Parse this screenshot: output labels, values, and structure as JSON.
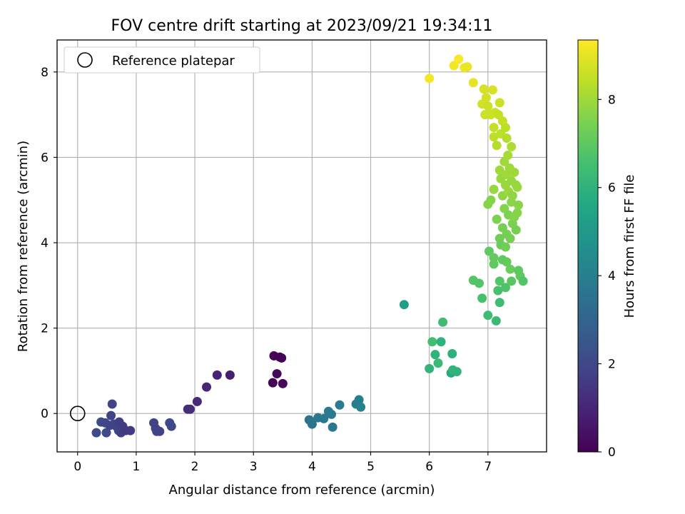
{
  "chart_data": {
    "type": "scatter",
    "title": "FOV centre drift starting at 2023/09/21 19:34:11",
    "xlabel": "Angular distance from reference (arcmin)",
    "ylabel": "Rotation from reference (arcmin)",
    "xlim": [
      -0.35,
      8.0
    ],
    "ylim": [
      -0.9,
      8.75
    ],
    "xticks": [
      "0",
      "1",
      "2",
      "3",
      "4",
      "5",
      "6",
      "7"
    ],
    "yticks": [
      "0",
      "2",
      "4",
      "6",
      "8"
    ],
    "grid": true,
    "legend": {
      "position": "top-left",
      "entries": [
        {
          "label": "Reference platepar",
          "marker": "open-circle"
        }
      ]
    },
    "reference_point": {
      "x": 0,
      "y": 0
    },
    "colorbar": {
      "label": "Hours from first FF file",
      "range": [
        0,
        9.35
      ],
      "ticks": [
        "0",
        "2",
        "4",
        "6",
        "8"
      ],
      "colormap": "viridis"
    },
    "points": [
      {
        "x": 0.32,
        "y": -0.45,
        "h": 2.1
      },
      {
        "x": 0.4,
        "y": -0.2,
        "h": 2.1
      },
      {
        "x": 0.47,
        "y": -0.22,
        "h": 2.0
      },
      {
        "x": 0.49,
        "y": -0.45,
        "h": 2.0
      },
      {
        "x": 0.55,
        "y": -0.28,
        "h": 1.9
      },
      {
        "x": 0.57,
        "y": -0.05,
        "h": 1.9
      },
      {
        "x": 0.59,
        "y": 0.22,
        "h": 1.9
      },
      {
        "x": 0.62,
        "y": -0.25,
        "h": 1.8
      },
      {
        "x": 0.66,
        "y": -0.3,
        "h": 1.8
      },
      {
        "x": 0.7,
        "y": -0.4,
        "h": 1.8
      },
      {
        "x": 0.71,
        "y": -0.2,
        "h": 1.7
      },
      {
        "x": 0.74,
        "y": -0.45,
        "h": 1.7
      },
      {
        "x": 0.77,
        "y": -0.3,
        "h": 1.7
      },
      {
        "x": 0.82,
        "y": -0.4,
        "h": 1.6
      },
      {
        "x": 0.9,
        "y": -0.4,
        "h": 1.6
      },
      {
        "x": 1.3,
        "y": -0.22,
        "h": 1.8
      },
      {
        "x": 1.33,
        "y": -0.35,
        "h": 1.8
      },
      {
        "x": 1.35,
        "y": -0.42,
        "h": 1.9
      },
      {
        "x": 1.4,
        "y": -0.42,
        "h": 1.9
      },
      {
        "x": 1.57,
        "y": -0.22,
        "h": 2.0
      },
      {
        "x": 1.6,
        "y": -0.3,
        "h": 2.0
      },
      {
        "x": 1.88,
        "y": 0.1,
        "h": 1.2
      },
      {
        "x": 1.92,
        "y": 0.1,
        "h": 1.2
      },
      {
        "x": 2.04,
        "y": 0.28,
        "h": 1.1
      },
      {
        "x": 2.2,
        "y": 0.62,
        "h": 1.0
      },
      {
        "x": 2.38,
        "y": 0.9,
        "h": 0.9
      },
      {
        "x": 2.6,
        "y": 0.9,
        "h": 0.8
      },
      {
        "x": 3.33,
        "y": 0.72,
        "h": 0.1
      },
      {
        "x": 3.35,
        "y": 1.35,
        "h": 0.1
      },
      {
        "x": 3.4,
        "y": 0.93,
        "h": 0.2
      },
      {
        "x": 3.45,
        "y": 1.32,
        "h": 0.1
      },
      {
        "x": 3.48,
        "y": 1.3,
        "h": 0.1
      },
      {
        "x": 3.5,
        "y": 0.7,
        "h": 0.2
      },
      {
        "x": 3.95,
        "y": -0.15,
        "h": 3.6
      },
      {
        "x": 4.0,
        "y": -0.25,
        "h": 3.6
      },
      {
        "x": 4.1,
        "y": -0.1,
        "h": 3.7
      },
      {
        "x": 4.2,
        "y": -0.12,
        "h": 3.7
      },
      {
        "x": 4.28,
        "y": 0.05,
        "h": 3.8
      },
      {
        "x": 4.33,
        "y": -0.02,
        "h": 3.8
      },
      {
        "x": 4.35,
        "y": -0.32,
        "h": 3.7
      },
      {
        "x": 4.47,
        "y": 0.2,
        "h": 3.9
      },
      {
        "x": 4.75,
        "y": 0.22,
        "h": 4.0
      },
      {
        "x": 4.8,
        "y": 0.32,
        "h": 4.0
      },
      {
        "x": 4.83,
        "y": 0.15,
        "h": 4.1
      },
      {
        "x": 5.57,
        "y": 2.55,
        "h": 5.2
      },
      {
        "x": 6.0,
        "y": 1.05,
        "h": 6.1
      },
      {
        "x": 6.05,
        "y": 1.68,
        "h": 6.5
      },
      {
        "x": 6.1,
        "y": 1.38,
        "h": 6.0
      },
      {
        "x": 6.15,
        "y": 1.18,
        "h": 6.3
      },
      {
        "x": 6.2,
        "y": 1.68,
        "h": 6.0
      },
      {
        "x": 6.23,
        "y": 2.14,
        "h": 6.4
      },
      {
        "x": 6.37,
        "y": 0.95,
        "h": 5.7
      },
      {
        "x": 6.39,
        "y": 1.4,
        "h": 5.9
      },
      {
        "x": 6.4,
        "y": 1.02,
        "h": 6.1
      },
      {
        "x": 6.47,
        "y": 0.98,
        "h": 6.0
      },
      {
        "x": 6.75,
        "y": 3.12,
        "h": 6.8
      },
      {
        "x": 6.85,
        "y": 3.05,
        "h": 6.8
      },
      {
        "x": 6.9,
        "y": 2.7,
        "h": 6.6
      },
      {
        "x": 7.0,
        "y": 2.3,
        "h": 6.4
      },
      {
        "x": 7.02,
        "y": 3.8,
        "h": 7.0
      },
      {
        "x": 7.1,
        "y": 3.5,
        "h": 7.0
      },
      {
        "x": 7.1,
        "y": 3.65,
        "h": 7.1
      },
      {
        "x": 7.14,
        "y": 2.17,
        "h": 6.3
      },
      {
        "x": 7.17,
        "y": 2.88,
        "h": 6.6
      },
      {
        "x": 7.2,
        "y": 2.6,
        "h": 6.4
      },
      {
        "x": 7.2,
        "y": 3.1,
        "h": 6.8
      },
      {
        "x": 7.25,
        "y": 3.6,
        "h": 7.0
      },
      {
        "x": 7.3,
        "y": 2.95,
        "h": 6.7
      },
      {
        "x": 7.32,
        "y": 3.55,
        "h": 7.1
      },
      {
        "x": 7.4,
        "y": 3.1,
        "h": 6.9
      },
      {
        "x": 7.38,
        "y": 3.38,
        "h": 7.2
      },
      {
        "x": 7.52,
        "y": 3.35,
        "h": 7.0
      },
      {
        "x": 7.55,
        "y": 3.22,
        "h": 7.0
      },
      {
        "x": 7.6,
        "y": 3.1,
        "h": 6.8
      },
      {
        "x": 7.0,
        "y": 4.9,
        "h": 7.6
      },
      {
        "x": 7.05,
        "y": 5.0,
        "h": 7.6
      },
      {
        "x": 7.15,
        "y": 4.55,
        "h": 7.5
      },
      {
        "x": 7.2,
        "y": 4.1,
        "h": 7.3
      },
      {
        "x": 7.22,
        "y": 3.95,
        "h": 7.2
      },
      {
        "x": 7.25,
        "y": 4.35,
        "h": 7.4
      },
      {
        "x": 7.28,
        "y": 4.8,
        "h": 7.6
      },
      {
        "x": 7.3,
        "y": 3.9,
        "h": 7.3
      },
      {
        "x": 7.32,
        "y": 4.2,
        "h": 7.4
      },
      {
        "x": 7.35,
        "y": 4.65,
        "h": 7.5
      },
      {
        "x": 7.38,
        "y": 4.1,
        "h": 7.4
      },
      {
        "x": 7.4,
        "y": 4.95,
        "h": 7.7
      },
      {
        "x": 7.42,
        "y": 4.45,
        "h": 7.5
      },
      {
        "x": 7.45,
        "y": 4.6,
        "h": 7.6
      },
      {
        "x": 7.48,
        "y": 4.3,
        "h": 7.4
      },
      {
        "x": 7.5,
        "y": 4.7,
        "h": 7.6
      },
      {
        "x": 7.52,
        "y": 4.88,
        "h": 7.7
      },
      {
        "x": 7.1,
        "y": 5.25,
        "h": 7.9
      },
      {
        "x": 7.2,
        "y": 5.7,
        "h": 8.0
      },
      {
        "x": 7.22,
        "y": 5.5,
        "h": 7.9
      },
      {
        "x": 7.25,
        "y": 5.1,
        "h": 7.8
      },
      {
        "x": 7.28,
        "y": 5.9,
        "h": 8.0
      },
      {
        "x": 7.3,
        "y": 5.35,
        "h": 7.9
      },
      {
        "x": 7.32,
        "y": 5.6,
        "h": 8.0
      },
      {
        "x": 7.34,
        "y": 6.05,
        "h": 8.1
      },
      {
        "x": 7.35,
        "y": 5.2,
        "h": 7.9
      },
      {
        "x": 7.37,
        "y": 5.75,
        "h": 8.0
      },
      {
        "x": 7.4,
        "y": 5.45,
        "h": 7.9
      },
      {
        "x": 7.42,
        "y": 5.1,
        "h": 7.8
      },
      {
        "x": 7.45,
        "y": 5.65,
        "h": 8.0
      },
      {
        "x": 7.48,
        "y": 5.35,
        "h": 7.9
      },
      {
        "x": 7.5,
        "y": 5.3,
        "h": 7.9
      },
      {
        "x": 7.4,
        "y": 6.25,
        "h": 8.2
      },
      {
        "x": 6.9,
        "y": 7.25,
        "h": 8.7
      },
      {
        "x": 6.93,
        "y": 7.6,
        "h": 8.8
      },
      {
        "x": 6.95,
        "y": 7.0,
        "h": 8.6
      },
      {
        "x": 6.97,
        "y": 7.4,
        "h": 8.7
      },
      {
        "x": 7.0,
        "y": 7.2,
        "h": 8.6
      },
      {
        "x": 7.05,
        "y": 7.0,
        "h": 8.6
      },
      {
        "x": 7.08,
        "y": 7.58,
        "h": 8.8
      },
      {
        "x": 7.1,
        "y": 6.7,
        "h": 8.5
      },
      {
        "x": 7.1,
        "y": 6.48,
        "h": 8.4
      },
      {
        "x": 7.12,
        "y": 7.05,
        "h": 8.6
      },
      {
        "x": 7.15,
        "y": 6.28,
        "h": 8.3
      },
      {
        "x": 7.18,
        "y": 7.0,
        "h": 8.5
      },
      {
        "x": 7.2,
        "y": 7.28,
        "h": 8.6
      },
      {
        "x": 7.22,
        "y": 6.55,
        "h": 8.4
      },
      {
        "x": 7.25,
        "y": 6.85,
        "h": 8.5
      },
      {
        "x": 7.3,
        "y": 6.7,
        "h": 8.4
      },
      {
        "x": 7.32,
        "y": 6.45,
        "h": 8.3
      },
      {
        "x": 6.0,
        "y": 7.85,
        "h": 9.2
      },
      {
        "x": 6.42,
        "y": 8.15,
        "h": 9.2
      },
      {
        "x": 6.5,
        "y": 8.3,
        "h": 9.3
      },
      {
        "x": 6.6,
        "y": 8.1,
        "h": 9.1
      },
      {
        "x": 6.65,
        "y": 8.12,
        "h": 9.1
      },
      {
        "x": 6.75,
        "y": 7.75,
        "h": 9.0
      }
    ]
  }
}
